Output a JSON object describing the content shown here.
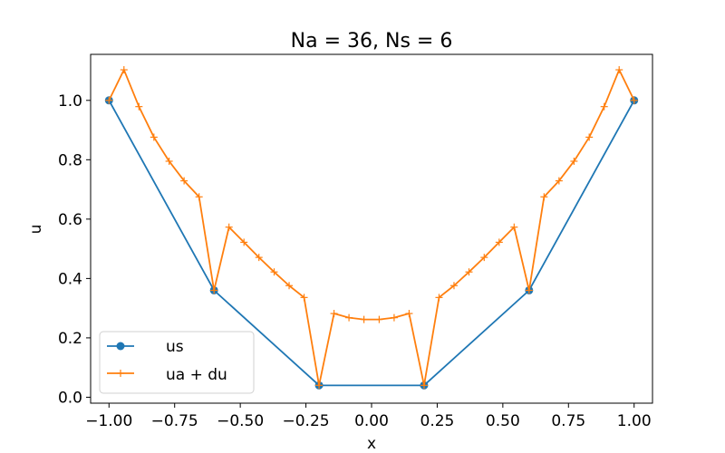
{
  "chart_data": {
    "type": "line",
    "title": "Na = 36, Ns = 6",
    "xlabel": "x",
    "ylabel": "u",
    "xlim": [
      -1.07,
      1.07
    ],
    "ylim": [
      -0.02,
      1.155
    ],
    "xticks": [
      -1.0,
      -0.75,
      -0.5,
      -0.25,
      0.0,
      0.25,
      0.5,
      0.75,
      1.0
    ],
    "xtick_labels": [
      "−1.00",
      "−0.75",
      "−0.50",
      "−0.25",
      "0.00",
      "0.25",
      "0.50",
      "0.75",
      "1.00"
    ],
    "yticks": [
      0.0,
      0.2,
      0.4,
      0.6,
      0.8,
      1.0
    ],
    "ytick_labels": [
      "0.0",
      "0.2",
      "0.4",
      "0.6",
      "0.8",
      "1.0"
    ],
    "grid": false,
    "legend_position": "lower-left",
    "series": [
      {
        "name": "us",
        "color": "#1f77b4",
        "marker": "circle",
        "x": [
          -1.0,
          -0.6,
          -0.2,
          0.2,
          0.6,
          1.0
        ],
        "y": [
          1.0,
          0.36,
          0.04,
          0.04,
          0.36,
          1.0
        ]
      },
      {
        "name": "ua + du",
        "color": "#ff7f0e",
        "marker": "plus",
        "x": [
          -1.0,
          -0.943,
          -0.886,
          -0.829,
          -0.771,
          -0.714,
          -0.657,
          -0.6,
          -0.543,
          -0.486,
          -0.429,
          -0.371,
          -0.314,
          -0.257,
          -0.2,
          -0.143,
          -0.086,
          -0.029,
          0.029,
          0.086,
          0.143,
          0.2,
          0.257,
          0.314,
          0.371,
          0.429,
          0.486,
          0.543,
          0.6,
          0.657,
          0.714,
          0.771,
          0.829,
          0.886,
          0.943,
          1.0
        ],
        "y": [
          1.0,
          1.103,
          0.979,
          0.876,
          0.795,
          0.729,
          0.675,
          0.36,
          0.573,
          0.522,
          0.471,
          0.422,
          0.376,
          0.336,
          0.04,
          0.282,
          0.268,
          0.262,
          0.262,
          0.268,
          0.282,
          0.04,
          0.336,
          0.376,
          0.422,
          0.471,
          0.522,
          0.573,
          0.36,
          0.675,
          0.729,
          0.795,
          0.876,
          0.979,
          1.103,
          1.0
        ]
      }
    ]
  }
}
